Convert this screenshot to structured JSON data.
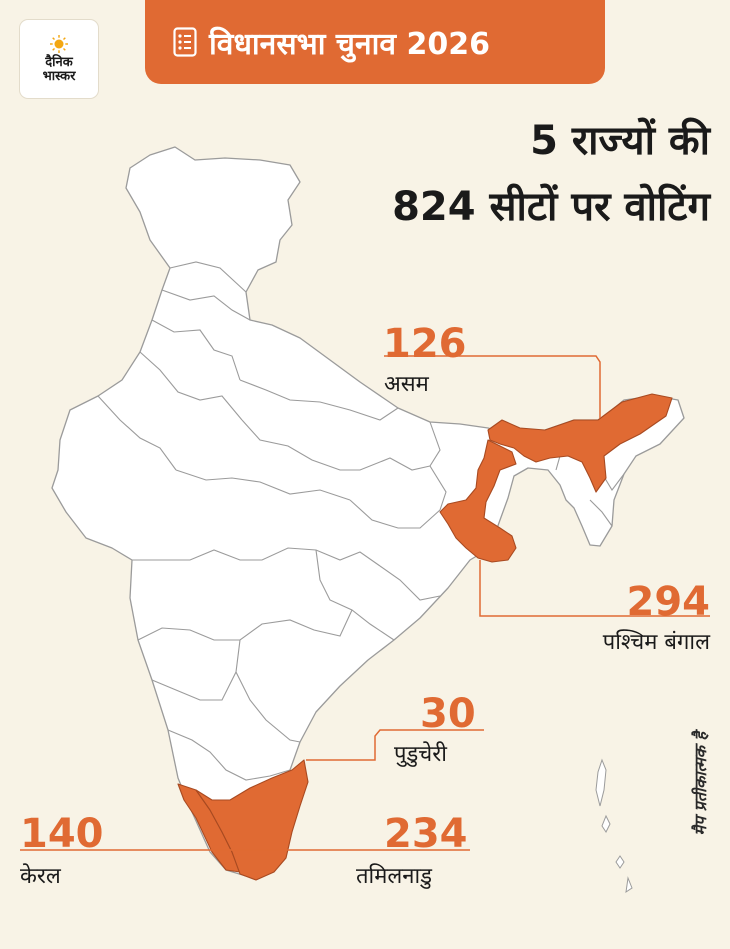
{
  "brand": {
    "line1": "दैनिक",
    "line2": "भास्कर"
  },
  "banner": {
    "title": "विधानसभा चुनाव 2026"
  },
  "headline": {
    "line1": "5 राज्यों की",
    "line2": "824 सीटों पर वोटिंग"
  },
  "states": {
    "assam": {
      "name": "असम",
      "seats": "126"
    },
    "west_bengal": {
      "name": "पश्चिम बंगाल",
      "seats": "294"
    },
    "puducherry": {
      "name": "पुडुचेरी",
      "seats": "30"
    },
    "kerala": {
      "name": "केरल",
      "seats": "140"
    },
    "tamil_nadu": {
      "name": "तमिलनाडु",
      "seats": "234"
    }
  },
  "note": "मैप प्रतीकात्मक है",
  "colors": {
    "accent": "#e06a33",
    "background": "#f8f3e6",
    "map_fill": "#ffffff",
    "map_stroke": "#9b9b9b",
    "text": "#1a1a1a"
  }
}
